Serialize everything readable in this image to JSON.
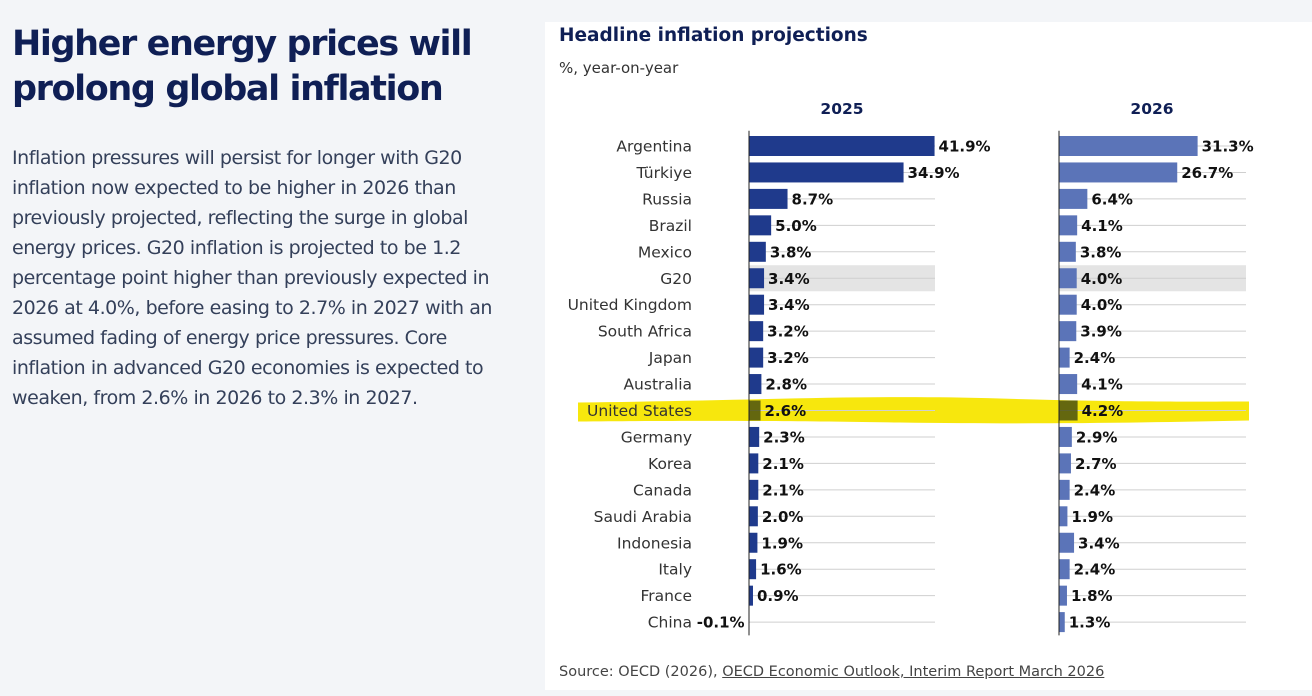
{
  "article": {
    "headline": "Higher energy prices will prolong global inflation",
    "body": "Inflation pressures will persist for longer with G20 inflation now expected to be higher in 2026 than previously projected, reflecting the surge in global energy prices. G20 inflation is projected to be 1.2 percentage point higher than previously expected in 2026 at 4.0%, before easing to 2.7% in 2027 with an assumed fading of energy price pressures. Core inflation in advanced G20 economies is expected to weaken, from 2.6% in 2026 to 2.3% in 2027."
  },
  "source": {
    "prefix": "Source: OECD (2026), ",
    "link_text": "OECD Economic Outlook, Interim Report March 2026"
  },
  "colors": {
    "series_2025": "#1f3a8c",
    "series_2026": "#5b74b8",
    "headline": "#0f1f55",
    "highlight": "#f7e600",
    "g20_band": "#e4e4e4"
  },
  "chart_data": {
    "type": "bar",
    "orientation": "horizontal",
    "title": "Headline inflation projections",
    "subtitle": "%, year-on-year",
    "categories": [
      "Argentina",
      "Türkiye",
      "Russia",
      "Brazil",
      "Mexico",
      "G20",
      "United Kingdom",
      "South Africa",
      "Japan",
      "Australia",
      "United States",
      "Germany",
      "Korea",
      "Canada",
      "Saudi Arabia",
      "Indonesia",
      "Italy",
      "France",
      "China"
    ],
    "series": [
      {
        "name": "2025",
        "values": [
          41.9,
          34.9,
          8.7,
          5.0,
          3.8,
          3.4,
          3.4,
          3.2,
          3.2,
          2.8,
          2.6,
          2.3,
          2.1,
          2.1,
          2.0,
          1.9,
          1.6,
          0.9,
          -0.1
        ],
        "labels": [
          "41.9%",
          "34.9%",
          "8.7%",
          "5.0%",
          "3.8%",
          "3.4%",
          "3.4%",
          "3.2%",
          "3.2%",
          "2.8%",
          "2.6%",
          "2.3%",
          "2.1%",
          "2.1%",
          "2.0%",
          "1.9%",
          "1.6%",
          "0.9%",
          "-0.1%"
        ]
      },
      {
        "name": "2026",
        "values": [
          31.3,
          26.7,
          6.4,
          4.1,
          3.8,
          4.0,
          4.0,
          3.9,
          2.4,
          4.1,
          4.2,
          2.9,
          2.7,
          2.4,
          1.9,
          3.4,
          2.4,
          1.8,
          1.3
        ],
        "labels": [
          "31.3%",
          "26.7%",
          "6.4%",
          "4.1%",
          "3.8%",
          "4.0%",
          "4.0%",
          "3.9%",
          "2.4%",
          "4.1%",
          "4.2%",
          "2.9%",
          "2.7%",
          "2.4%",
          "1.9%",
          "3.4%",
          "2.4%",
          "1.8%",
          "1.3%"
        ]
      }
    ],
    "highlighted_categories": [
      "G20",
      "United States"
    ],
    "legend": "none"
  }
}
